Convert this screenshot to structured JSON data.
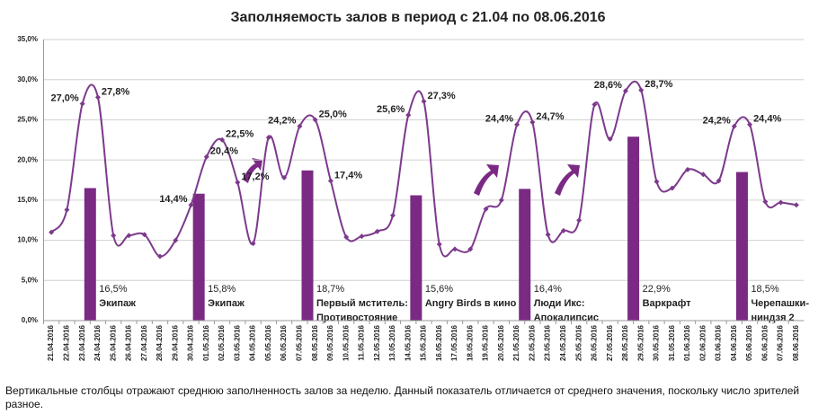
{
  "chart_data": {
    "type": "line_bar",
    "title": "Заполняемость залов в период с 21.04 по 08.06.2016",
    "categories": [
      "21.04.2016",
      "22.04.2016",
      "23.04.2016",
      "24.04.2016",
      "25.04.2016",
      "26.04.2016",
      "27.04.2016",
      "28.04.2016",
      "29.04.2016",
      "30.04.2016",
      "01.05.2016",
      "02.05.2016",
      "03.05.2016",
      "04.05.2016",
      "05.05.2016",
      "06.05.2016",
      "07.05.2016",
      "08.05.2016",
      "09.05.2016",
      "10.05.2016",
      "11.05.2016",
      "12.05.2016",
      "13.05.2016",
      "14.05.2016",
      "15.05.2016",
      "16.05.2016",
      "17.05.2016",
      "18.05.2016",
      "19.05.2016",
      "20.05.2016",
      "21.05.2016",
      "22.05.2016",
      "23.05.2016",
      "24.05.2016",
      "25.05.2016",
      "26.05.2016",
      "27.05.2016",
      "28.05.2016",
      "29.05.2016",
      "30.05.2016",
      "31.05.2016",
      "01.06.2016",
      "02.06.2016",
      "03.06.2016",
      "04.06.2016",
      "05.06.2016",
      "06.06.2016",
      "07.06.2016",
      "08.06.2016"
    ],
    "category_colors": [
      "#222",
      "#222",
      "#e0312f",
      "#e0312f",
      "#222",
      "#222",
      "#222",
      "#222",
      "#222",
      "#e0312f",
      "#e0312f",
      "#e0312f",
      "#e0312f",
      "#222",
      "#222",
      "#222",
      "#e0312f",
      "#e0312f",
      "#e0312f",
      "#222",
      "#222",
      "#222",
      "#222",
      "#e0312f",
      "#e0312f",
      "#222",
      "#222",
      "#222",
      "#222",
      "#222",
      "#e0312f",
      "#e0312f",
      "#222",
      "#222",
      "#222",
      "#222",
      "#222",
      "#e0312f",
      "#e0312f",
      "#222",
      "#222",
      "#222",
      "#222",
      "#222",
      "#e0312f",
      "#e0312f",
      "#222",
      "#222",
      "#222"
    ],
    "series": [
      {
        "kind": "line",
        "color": "#7d3a8c",
        "values": [
          11.0,
          13.8,
          27.0,
          27.8,
          10.6,
          10.6,
          10.7,
          8.0,
          10.0,
          14.4,
          20.4,
          22.5,
          17.2,
          9.6,
          22.8,
          17.8,
          24.2,
          25.0,
          17.4,
          10.4,
          10.5,
          11.1,
          13.1,
          25.6,
          27.3,
          9.5,
          8.9,
          8.9,
          13.9,
          15.0,
          24.4,
          24.7,
          10.7,
          11.2,
          12.5,
          26.9,
          22.6,
          28.6,
          28.7,
          17.3,
          16.5,
          18.8,
          18.2,
          17.4,
          24.2,
          24.4,
          14.8,
          14.7,
          14.4
        ],
        "value_labels": [
          null,
          null,
          "27,0%",
          "27,8%",
          null,
          null,
          null,
          null,
          null,
          "14,4%",
          "20,4%",
          "22,5%",
          "17,2%",
          null,
          null,
          null,
          "24,2%",
          "25,0%",
          "17,4%",
          null,
          null,
          null,
          null,
          "25,6%",
          "27,3%",
          null,
          null,
          null,
          null,
          null,
          "24,4%",
          "24,7%",
          null,
          null,
          null,
          null,
          null,
          "28,6%",
          "28,7%",
          null,
          null,
          null,
          null,
          null,
          "24,2%",
          "24,4%",
          null,
          null,
          null
        ]
      },
      {
        "kind": "bar",
        "color": "#7b2a84",
        "values": [
          null,
          null,
          16.5,
          null,
          null,
          null,
          null,
          null,
          null,
          15.8,
          null,
          null,
          null,
          null,
          null,
          null,
          18.7,
          null,
          null,
          null,
          null,
          null,
          null,
          15.6,
          null,
          null,
          null,
          null,
          null,
          null,
          16.4,
          null,
          null,
          null,
          null,
          null,
          null,
          22.9,
          null,
          null,
          null,
          null,
          null,
          null,
          18.5,
          null,
          null,
          null,
          null
        ],
        "value_labels": [
          null,
          null,
          "16,5%",
          null,
          null,
          null,
          null,
          null,
          null,
          "15,8%",
          null,
          null,
          null,
          null,
          null,
          null,
          "18,7%",
          null,
          null,
          null,
          null,
          null,
          null,
          "15,6%",
          null,
          null,
          null,
          null,
          null,
          null,
          "16,4%",
          null,
          null,
          null,
          null,
          null,
          null,
          "22,9%",
          null,
          null,
          null,
          null,
          null,
          null,
          "18,5%",
          null,
          null,
          null,
          null
        ],
        "names": [
          null,
          null,
          [
            "Экипаж"
          ],
          null,
          null,
          null,
          null,
          null,
          null,
          [
            "Экипаж"
          ],
          null,
          null,
          null,
          null,
          null,
          null,
          [
            "Первый мститель:",
            "Противостояние"
          ],
          null,
          null,
          null,
          null,
          null,
          null,
          [
            "Angry Birds в кино"
          ],
          null,
          null,
          null,
          null,
          null,
          null,
          [
            "Люди Икс:",
            "Апокалипсис"
          ],
          null,
          null,
          null,
          null,
          null,
          null,
          [
            "Варкрафт"
          ],
          null,
          null,
          null,
          null,
          null,
          null,
          [
            "Черепашки-",
            "ниндзя 2"
          ],
          null,
          null,
          null,
          null
        ]
      }
    ],
    "ylim": [
      0,
      35
    ],
    "yticks": [
      {
        "value": 0,
        "label": "0,0%"
      },
      {
        "value": 5,
        "label": "5,0%"
      },
      {
        "value": 10,
        "label": "10,0%"
      },
      {
        "value": 15,
        "label": "15,0%"
      },
      {
        "value": 20,
        "label": "20,0%"
      },
      {
        "value": 25,
        "label": "25,0%"
      },
      {
        "value": 30,
        "label": "30,0%"
      },
      {
        "value": 35,
        "label": "35,0%"
      }
    ],
    "grid": true
  },
  "note": "Вертикальные столбцы отражают среднюю заполненность залов за неделю. Данный показатель отличается от среднего значения, поскольку число зрителей разное."
}
